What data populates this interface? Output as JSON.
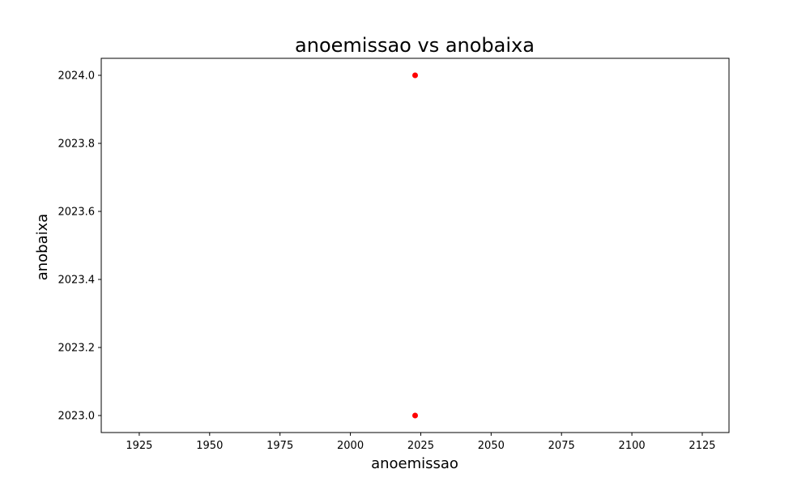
{
  "chart_data": {
    "type": "scatter",
    "title": "anoemissao vs anobaixa",
    "xlabel": "anoemissao",
    "ylabel": "anobaixa",
    "x_ticks": [
      "1925",
      "1950",
      "1975",
      "2000",
      "2025",
      "2050",
      "2075",
      "2100",
      "2125"
    ],
    "y_ticks": [
      "2023.0",
      "2023.2",
      "2023.4",
      "2023.6",
      "2023.8",
      "2024.0"
    ],
    "xlim": [
      1911.5,
      2134.5
    ],
    "ylim": [
      2022.95,
      2024.05
    ],
    "grid": false,
    "marker_color": "#ff0000",
    "points": [
      {
        "x": 2023,
        "y": 2024.0
      },
      {
        "x": 2023,
        "y": 2023.0
      }
    ]
  }
}
